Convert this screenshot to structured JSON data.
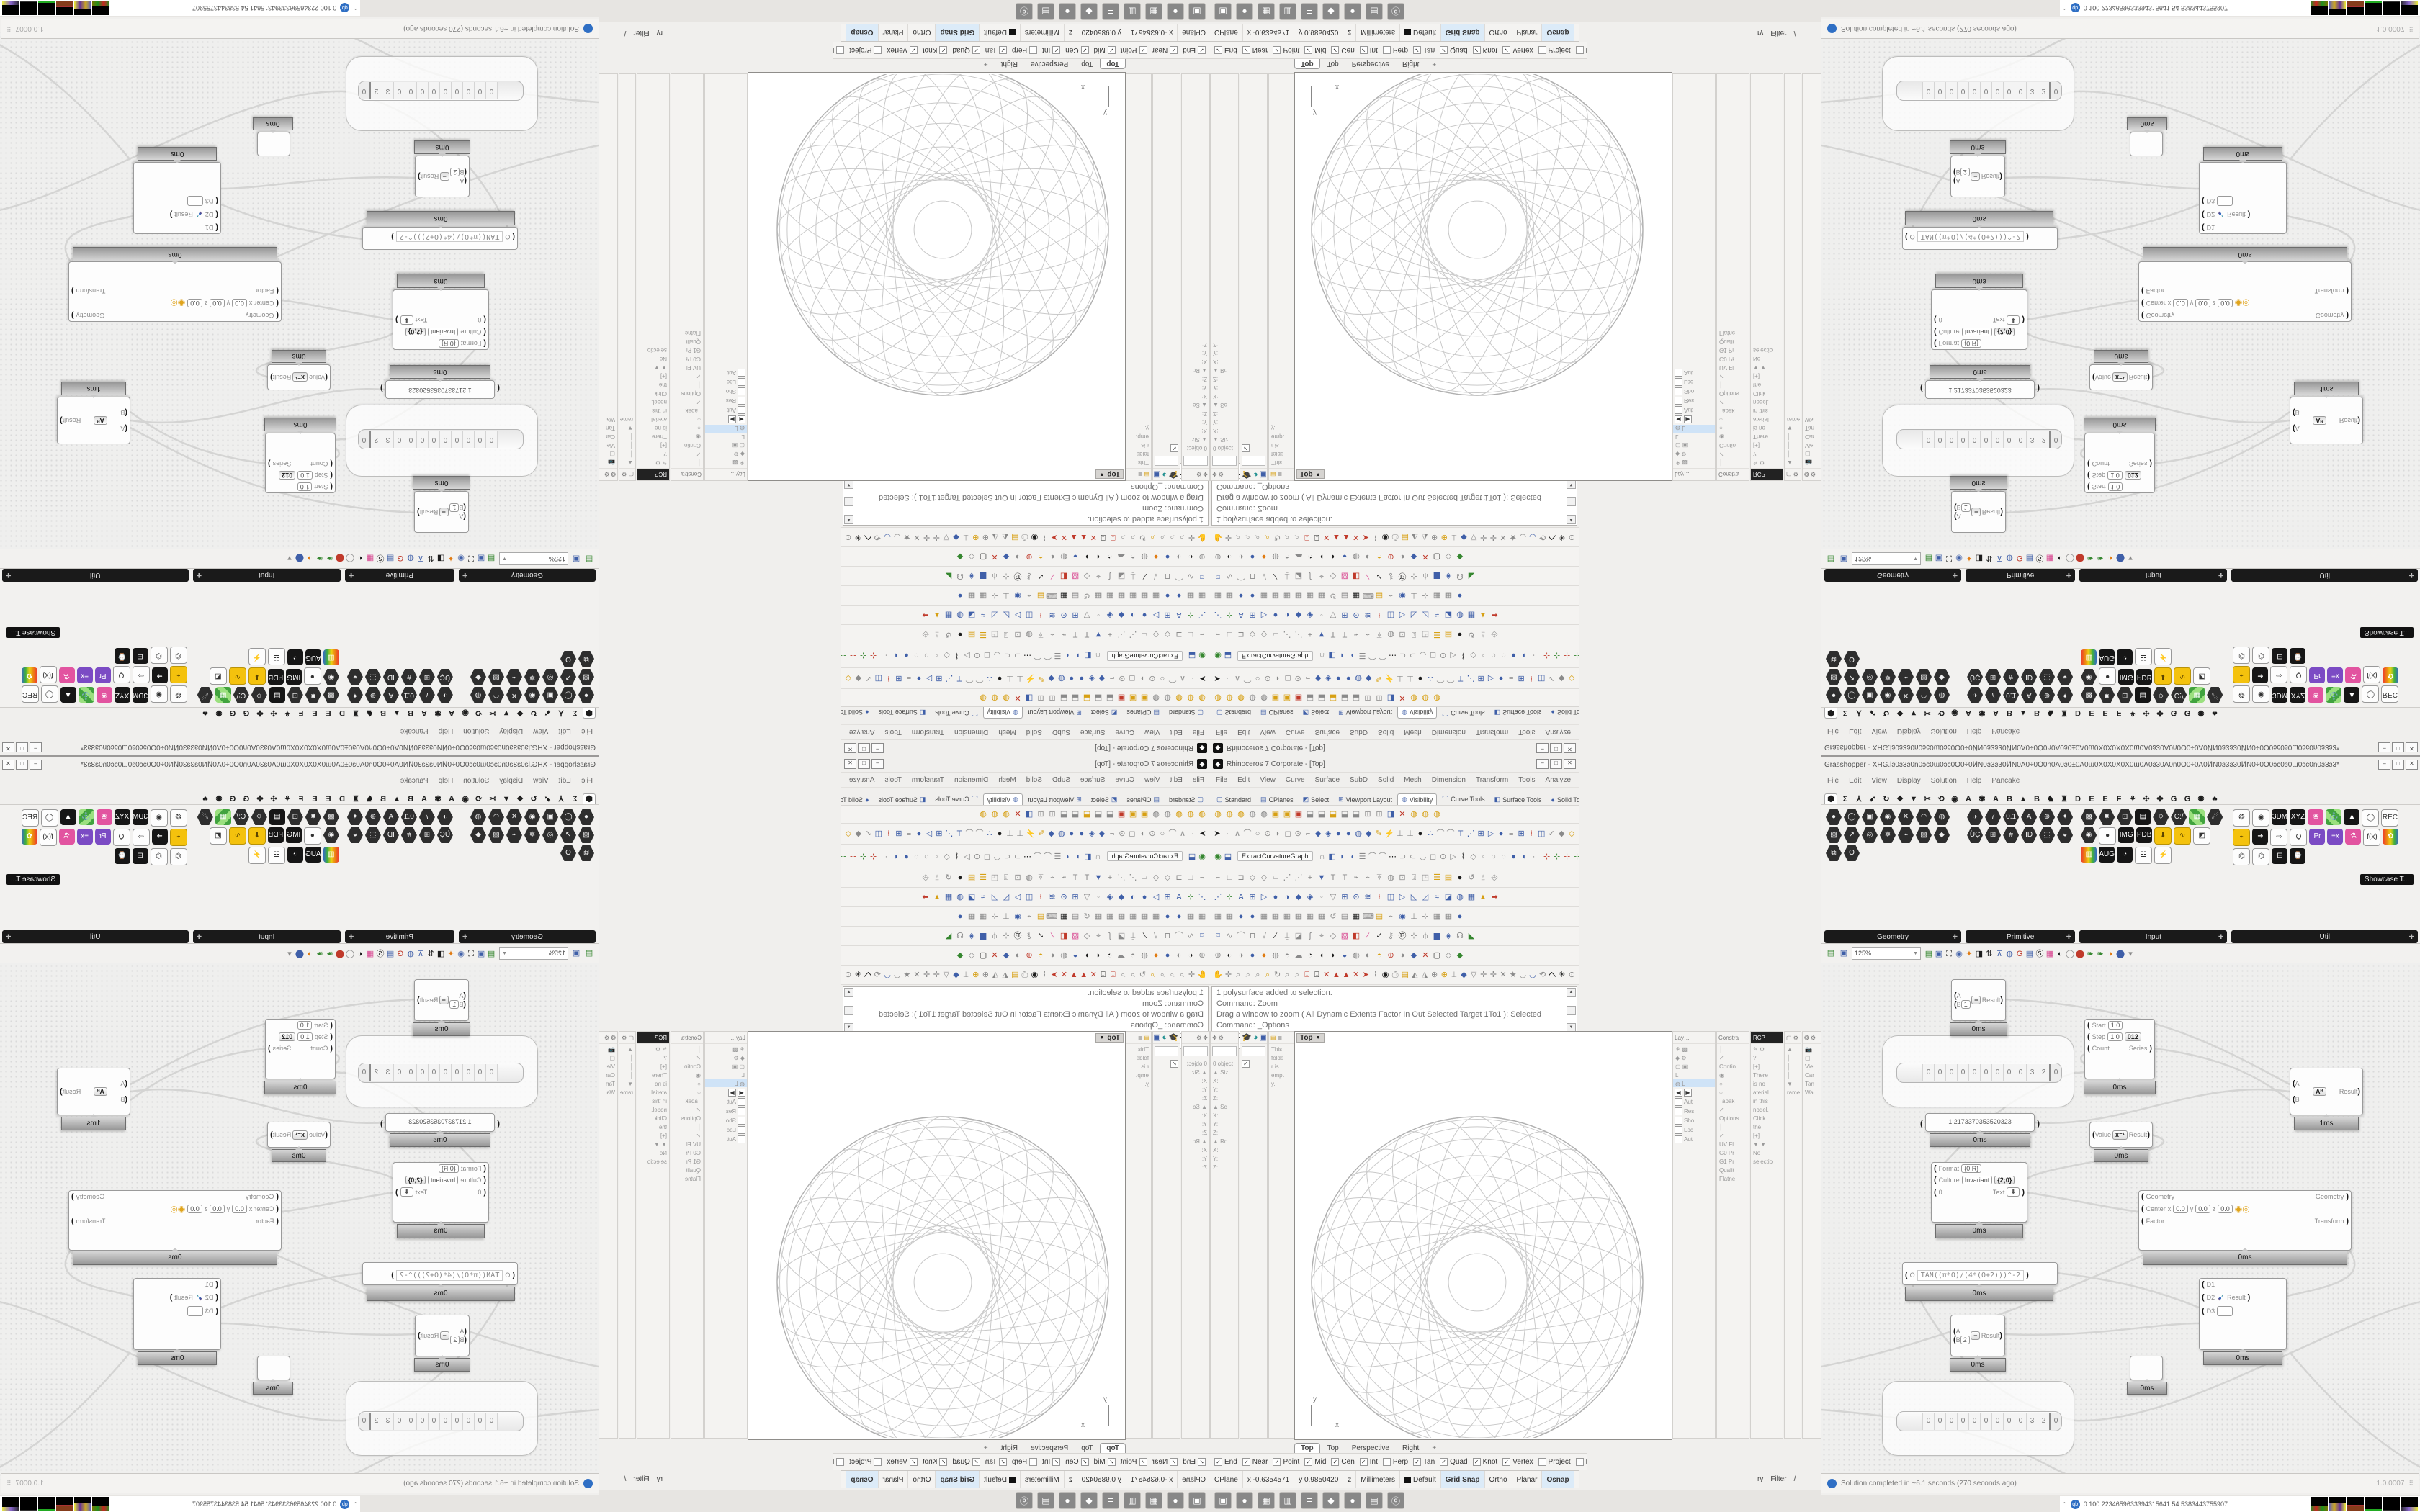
{
  "rhino": {
    "title": "Rhinoceros 7 Corporate - [Top]",
    "window_buttons": [
      "–",
      "□",
      "✕"
    ],
    "menus": [
      "File",
      "Edit",
      "View",
      "Curve",
      "Surface",
      "SubD",
      "Solid",
      "Mesh",
      "Dimension",
      "Transform",
      "Tools",
      "Analyze",
      "Render",
      "Panels",
      "Help"
    ],
    "toolbar_tabs": [
      "▢|Standard",
      "▤|CPlanes",
      "◩|Select",
      "⊞|Viewport Layout",
      "◍|Visibility|a",
      "⌒|Curve Tools",
      "◧|Surface Tools",
      "●|Solid Tools",
      "◉|SubD"
    ],
    "toolbar_overflow": "»",
    "gear_icon": "⚙",
    "rows": {
      "visibility": [
        "◍|y",
        "◍|y",
        "◍|y",
        "◍|g",
        "◍|g",
        "▣|y",
        "▣|y",
        "▣|r",
        "⬓|g",
        "⬓|g",
        "⬓|y",
        "⬓|g",
        "⬓|g",
        "⊞|g",
        "⊞|g",
        "◨|b",
        "✕|r",
        "◍|y",
        "◍|y",
        "◍|y"
      ],
      "tools": [
        "➤|k",
        "·|g",
        "∧|g",
        "⌒|g",
        "○|g",
        "⊙|g",
        "◗|g",
        "◻|g",
        "⊙|g",
        "⌐|g",
        "◆|b",
        "◈|b",
        "●|b",
        "●|b",
        "◍|b",
        "◆|b",
        "✎|y",
        "⚡|y",
        "⊥|g",
        "⊥|g",
        "●|k",
        "∴|b",
        "⌒|g",
        "⌒|g",
        "T|b",
        "⋰|b",
        "⊞|b",
        "▷|b",
        "●|b",
        "≡|g",
        "⊞|b",
        "⍿|r",
        "◫|b",
        "✓|g",
        "◆|g",
        "◇|y"
      ],
      "extract_a": [
        "◉|gr",
        "⬓|b"
      ],
      "extract_b": [
        "∩|g",
        "◧|b",
        "◗|b",
        "◖|b",
        "☰|g",
        "⌒|g",
        "⌒|g",
        "⋯|k",
        "⊃|g",
        "⊂|g",
        "◡|g",
        "◻|g",
        "⊙|g",
        "▷|g",
        "⌇|k",
        "◇|g",
        "◦|g",
        "○|g",
        "○|g",
        "●|b",
        "◖|b",
        "·|g"
      ],
      "extract_axes": [
        "⊹|r",
        "⊹|gr",
        "⊹|r",
        "⊹|gr"
      ],
      "row5": [
        "⌐|g",
        "∟|g",
        "⊐|g",
        "◇|g",
        "◇|g",
        "⌙|g",
        "⋰|g",
        "⋰|g",
        "+|g",
        "▼|b",
        "T|g",
        "T|g",
        "⌁|g",
        "⌁|g",
        "⍕|g",
        "◍|g",
        "⊡|g",
        "⍗|g",
        "◳|g",
        "☰|y",
        "▤|y",
        "●|k",
        "↺|g",
        "⍙|g",
        "⎆|g"
      ],
      "row6": [
        "⋰|b",
        "⊹|gr",
        "A|b",
        "⊞|b",
        "▷|b",
        "●|b",
        "◑|b",
        "◆|b",
        "◈|b",
        "◦|g",
        "▽|g",
        "⊞|b",
        "⊙|b",
        "≋|b",
        "⍿|r",
        "◫|b",
        "▷|b",
        "◺|b",
        "◿|b",
        "≈|b",
        "◪|b",
        "◍|b",
        "▦|b",
        "▲|y",
        "➡|r"
      ],
      "row7": [
        "▦|g",
        "▦|g",
        "●|b",
        "●|b",
        "▦|g",
        "▦|g",
        "▦|g",
        "▦|g",
        "▦|g",
        "▦|g",
        "↺|g",
        "▤|g",
        "▦|k",
        "⌨|g",
        "▤|y",
        "⌁|g",
        "◉|b",
        "⊥|g",
        "⊹|g",
        "▦|g",
        "▦|g",
        "●|b"
      ],
      "row8": [
        "⌑|b",
        "∿|g",
        "⌒|g",
        "⊓|g",
        "√|g",
        "∕|k",
        "⍊|g",
        "◪|g",
        "∫|g",
        "⌖|g",
        "◇|g",
        "▧|pk",
        "◧|r",
        "∕|pk",
        "✓|k",
        "⚷|g",
        "⑬|k",
        "⊹|g",
        "⫛|g",
        "▆|b",
        "◈|b",
        "☊|g",
        "◣|gr"
      ],
      "display": [
        "⊕|g",
        "◐|k",
        "◑|g",
        "●|b",
        "●|o",
        "◍|g",
        "◓|g",
        "☁|g",
        "◔|k",
        "◖|k",
        "◗|k",
        "◒|b",
        "◍|g",
        "◐|g",
        "◓|y",
        "⊕|r",
        "◑|g",
        "◆|b",
        "✕|r",
        "▢|k",
        "◇|g",
        "◆|gr"
      ],
      "nav": [
        "✋|g",
        "✛|g",
        "⌕|g",
        "⌕|g",
        "⌕|g",
        "⌕|y",
        "↻|g",
        "⌕|g",
        "⌕|g",
        "⍗|r",
        "⍗|k",
        "✕|r",
        "▲|r",
        "▲|r",
        "✕|r",
        "➤|r",
        "⌇|g",
        "◉|k",
        "⎙|g",
        "▤|y",
        "◭|g",
        "◮|g",
        "⊕|g",
        "⊕|y",
        "⍊|g",
        "◆|b",
        "▽|g",
        "✛|g",
        "✛|g",
        "✕|g",
        "★|g",
        "◡|g",
        "◡|b",
        "⟲|g",
        "ヘ|k",
        "✳|k",
        "⊙|g"
      ]
    },
    "extract_button": "ExtractCurvatureGraph",
    "command_history": [
      "1 polysurface added to selection.",
      "Command: Zoom",
      "Drag a window to zoom ( All  Dynamic  Extents  Factor  In  Out  Selected  Target  1To1 ): Selected",
      "Command: _Options"
    ],
    "command_prompt": "Command:",
    "left_panels": {
      "boxedit_header": "⟲ ⚙",
      "boxedit_lines": [
        "0 object",
        "▲ Siz",
        "X:",
        "Y:",
        "Z:",
        "▲ Sc",
        "X:",
        "Y:",
        "Z:",
        "▲ Ro",
        "X:",
        "Y:",
        "Z:"
      ],
      "col2_icons": [
        "🎓|k",
        "◕|c",
        "▣|b",
        "✓|g"
      ],
      "col3_lines": [
        "This",
        "folde",
        "r is",
        "empt",
        "y."
      ]
    },
    "viewport": {
      "label": "Top",
      "label_caret": "▼",
      "axis_x": "x",
      "axis_y": "y",
      "tabs": [
        "Top",
        "Top",
        "Perspective",
        "Right"
      ],
      "tab_add": "+"
    },
    "right_panels": {
      "layers_title": "Lay…",
      "layers_lines": [
        "⚘ ▩",
        "◆ ⚙",
        "▢ ▣",
        "L"
      ],
      "layer_selected": "◍  L",
      "layers_checks": [
        "Aut",
        "Res",
        "Sho",
        "Loc",
        "Aut"
      ],
      "col2_title": "Constra",
      "col2_lines": [
        "│",
        "✓",
        "Contin",
        "◉",
        "○",
        "○",
        "Tapak",
        "✓",
        "Options",
        "│",
        "✓",
        "UV Fl",
        "G0 Pr",
        "G1 Pr",
        "Qualit",
        "Flatne"
      ],
      "col3_title": "RCP",
      "col3_lines": [
        "✎ ⚙",
        "?",
        "[+]",
        "There",
        "is no",
        "aterial",
        "in this",
        "nodel.",
        "Click",
        "the",
        "[+]",
        "▼ ▼",
        "No",
        "selectio"
      ],
      "col4_title": "▢ ⚙",
      "col4_lines": [
        "▲",
        "│",
        "│",
        "│",
        "▼",
        "rame"
      ],
      "col5_title": "❂ ⚙",
      "col5_lines": [
        "📷",
        "▢",
        "Vie",
        "Car",
        "Tan",
        "Wa"
      ]
    },
    "osnap": [
      {
        "l": "End",
        "c": 1
      },
      {
        "l": "Near",
        "c": 1
      },
      {
        "l": "Point",
        "c": 1
      },
      {
        "l": "Mid",
        "c": 1
      },
      {
        "l": "Cen",
        "c": 1
      },
      {
        "l": "Int",
        "c": 1
      },
      {
        "l": "Perp",
        "c": 0
      },
      {
        "l": "Tan",
        "c": 1
      },
      {
        "l": "Quad",
        "c": 1
      },
      {
        "l": "Knot",
        "c": 1
      },
      {
        "l": "Vertex",
        "c": 1
      },
      {
        "l": "Project",
        "c": 0
      },
      {
        "l": "Disable",
        "c": 0
      }
    ],
    "status": [
      {
        "t": "CPlane"
      },
      {
        "t": "x -0.6354571"
      },
      {
        "t": "y 0.9850420"
      },
      {
        "t": "z"
      },
      {
        "t": "Millimeters"
      },
      {
        "t": "Default",
        "sw": 1
      },
      {
        "t": "Grid Snap",
        "h": 1
      },
      {
        "t": "Ortho"
      },
      {
        "t": "Planar"
      },
      {
        "t": "Osnap",
        "h": 1
      },
      {
        "t": "SmartTrack"
      },
      {
        "t": "Gumball",
        "h": 1
      },
      {
        "t": "Record History"
      },
      {
        "t": "Filter"
      },
      {
        "t": "/"
      }
    ],
    "status_fragment": [
      "ry",
      "Filter",
      "/"
    ],
    "taskbar": [
      "▣|tg",
      "●|to",
      "▦|tb",
      "▥|tgr",
      "≣|tb",
      "◆|tk",
      "●|tp",
      "▤|tw",
      "ⓠ|tb"
    ]
  },
  "grasshopper": {
    "title": "Grasshopper - XHG.lƨ0ƨ3ƨ0n0ɔc0ɯ0ɔc0Ò0÷0ͶN0ƨ3ƨ30ͶN0A0÷0Ò0n0A0ƨ0±0A0ɯ0X0X0X0X0ɯ0A0ƨ30A0n0Ò0÷0A0ͶN0ƨ3ƨ30ͶN0÷0Ò0ɔc0ƨ0ɯ0ɔc0n0ƨ3ƨ3*",
    "window_buttons": [
      "–",
      "□",
      "✕"
    ],
    "menus": [
      "File",
      "Edit",
      "View",
      "Display",
      "Solution",
      "Help",
      "Pancake"
    ],
    "tab_strip": [
      "⬢|k|first",
      "Σ|k",
      "⅄|k",
      "➶|k",
      "↻|k",
      "❖|k",
      "▼|k",
      "✂|k",
      "⟲|k",
      "◉|k",
      "A|k",
      "✾|k",
      "A|k",
      "B|k",
      "▲|k",
      "B|k",
      "♞|k",
      "♜|k",
      "D|k",
      "E|k",
      "E|k",
      "F|k",
      "⚘|k",
      "✣|k",
      "✤|k",
      "G|k",
      "G|k",
      "✺|k",
      "♣|k"
    ],
    "ribbon_groups": [
      {
        "label": "Geometry",
        "cells": [
          "●|hexc",
          "◯|hexc",
          "▣|hexc",
          "◉|hexc",
          "✕|hexc",
          "◠|hexc",
          "◍|hexc",
          "▨|hexc",
          "↗|hexc",
          "◎|hexc",
          "❄|hexc",
          "⌁|hexc",
          "▧|hexc",
          "◆|hexc",
          "⧉|hexc",
          "ʘ|hexc"
        ]
      },
      {
        "label": "Primitive",
        "cells": [
          "◑|hexc",
          "7|hexc",
          "0.1|hexc",
          "A|hexc",
          "⊕|hexc",
          "✦|hexc",
          "ÜÇ|hexc",
          "⊞|hexc",
          "#|hexc",
          "ID|hexc",
          "⬚|hexc",
          "◒|hexc"
        ]
      },
      {
        "label": "Input",
        "cells": [
          "▩|hexc",
          "✸|hexc",
          "⊡|hexc",
          "▤|chipk",
          "⟐|hexc",
          "C:/|hexc",
          "▦|chipgr",
          "☄|hexc",
          "◉|hexc",
          "●|chipw",
          "IMG|chipk",
          "PDB|chipk",
          "⬇|chipy",
          "∿|chipy",
          "◩|chipw",
          "▥|chiprb",
          "AUG|chipk",
          "◔|chipk",
          "☳|chipw",
          "⚡|chipw"
        ]
      },
      {
        "label": "Util",
        "cells": [
          "❂|chipw",
          "◉|chipw",
          "3DM|chipk",
          "XYZ|chipk",
          "❀|chippk",
          "⚓|chipgr",
          "▲|chipk",
          "◯|chipw",
          "REC|chipw",
          "⌁|chipy",
          "➜|chipk",
          "⇨|chipw",
          "Q|chipw",
          "Pr|chipp",
          "≡x|chipp",
          "⚗|chippk",
          "f(x)|chipw",
          "✿|chiprb",
          "⌬|chipw",
          "⌬|chipw",
          "⊟|chipk",
          "⌚|chipk"
        ]
      }
    ],
    "showcase_label": "Showcase T...",
    "toolbar": {
      "zoom_value": "125%",
      "zoom_caret": "▼",
      "icons": [
        "▤|gr",
        "▣|b",
        "⛶|k",
        "◉|b",
        "✦|o",
        "◨|k",
        "⇅|k",
        "⊼|b",
        "◍|b",
        "G|r",
        "▤|b",
        "Ⓢ|k",
        "▦|pk",
        "◐|k",
        "◯|g",
        "⬤|r",
        "❧|gr",
        "❧|gr",
        "◑|o",
        "⬤|b",
        "▾|g"
      ]
    },
    "canvas": {
      "minus1": {
        "a": "A",
        "b": "B",
        "bval": "1",
        "icon": "−",
        "out": "Result",
        "badge": "0ms"
      },
      "slider1": {
        "digits": [
          "0",
          "0",
          "0",
          "0",
          "0",
          "0",
          "0",
          "0",
          "0",
          "3",
          "2",
          "0"
        ],
        "badge": ""
      },
      "series": {
        "in1": "Start",
        "v1": "1.0",
        "in2": "Step",
        "v2": "1.0",
        "icon": "012",
        "in3": "Count",
        "out": "Series",
        "badge": "0ms"
      },
      "power": {
        "a": "A",
        "b": "B",
        "icon": "Aᴮ",
        "out": "Result",
        "badge": "1ms"
      },
      "panel": {
        "value": "1.2173370353520323",
        "badge": "0ms"
      },
      "inverse": {
        "in": "Value",
        "icon": "x⁻¹",
        "out": "Result",
        "badge": "0ms"
      },
      "format": {
        "in1": "Format",
        "v1": "{0:R}",
        "in2": "Culture",
        "v2": "Invariant",
        "icon": "{2;0}",
        "out": "Text",
        "outicon": "⬇",
        "in3": "0",
        "badge": "0ms"
      },
      "scale": {
        "in1": "Geometry",
        "in2": "Center",
        "x": "x",
        "xv": "0.0",
        "y": "y",
        "yv": "0.0",
        "z": "z",
        "zv": "0.0",
        "in3": "Factor",
        "icon": "🟡",
        "out1": "Geometry",
        "out2": "Transform",
        "badge": "0ms"
      },
      "expression": {
        "in": "O",
        "text": "TAN((π*O)/(4*(O+2)))^-2",
        "badge": "0ms"
      },
      "merge": {
        "d1": "D1",
        "d2": "D2",
        "d3": "D3",
        "icon": "➹",
        "out": "Result",
        "badge": "0ms"
      },
      "minus2": {
        "a": "A",
        "b": "B",
        "bval": "2",
        "icon": "−",
        "out": "Result",
        "badge": "0ms"
      },
      "blob": {
        "badge": "0ms"
      },
      "slider2": {
        "digits": [
          "0",
          "0",
          "0",
          "0",
          "0",
          "0",
          "0",
          "0",
          "0",
          "3",
          "2",
          "0"
        ]
      }
    },
    "status": {
      "text": "Solution completed in ~6.1 seconds (270 seconds ago)",
      "version": "1.0.0007",
      "grip": "⠿"
    }
  },
  "monitor": {
    "chevron": "⌃",
    "badge": "qb",
    "values": [
      "0.10",
      "0.22",
      "34",
      "659",
      "633",
      "39",
      "431",
      "564",
      "1.5",
      "4.5",
      "38",
      "34",
      "4375",
      "5907"
    ]
  }
}
